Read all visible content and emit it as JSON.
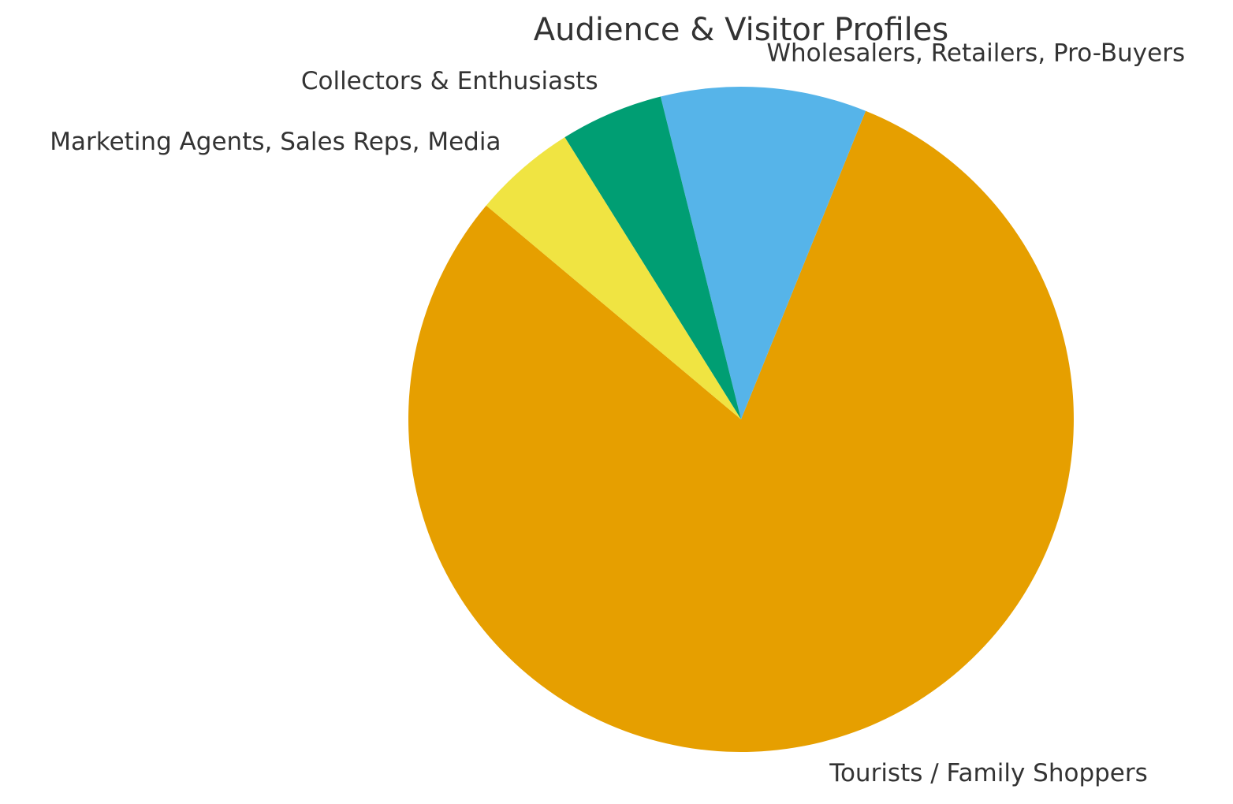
{
  "chart_data": {
    "type": "pie",
    "title": "Audience & Visitor Profiles",
    "categories": [
      "Tourists / Family Shoppers",
      "Wholesalers, Retailers, Pro-Buyers",
      "Collectors & Enthusiasts",
      "Marketing Agents, Sales Reps, Media"
    ],
    "values": [
      80,
      10,
      5,
      5
    ],
    "colors": [
      "#E69F00",
      "#56B4E9",
      "#009E73",
      "#F0E442"
    ],
    "startangle": 140
  }
}
